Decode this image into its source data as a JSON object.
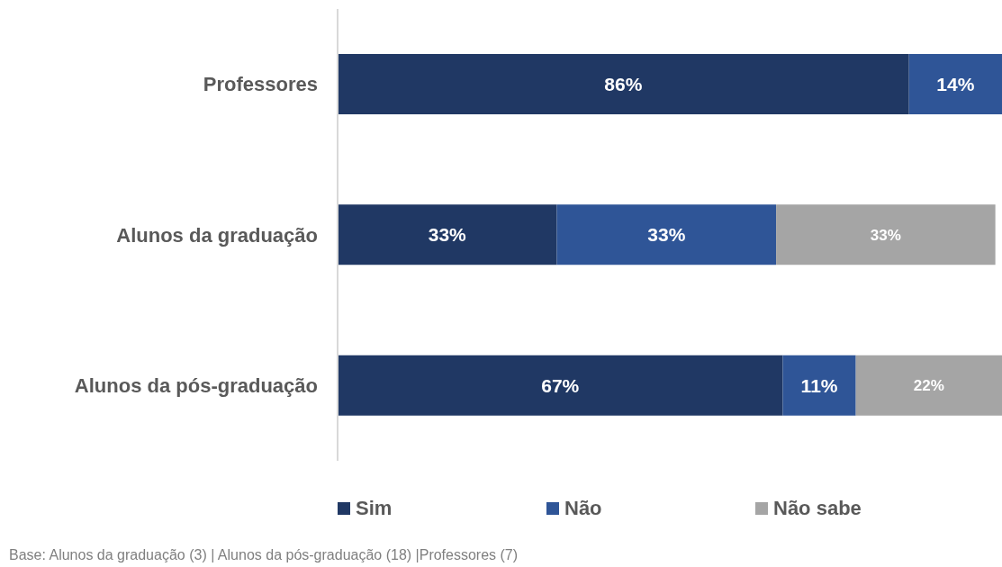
{
  "chart_data": {
    "type": "bar",
    "orientation": "horizontal",
    "stacked": true,
    "categories": [
      "Professores",
      "Alunos da graduação",
      "Alunos da pós-graduação"
    ],
    "series": [
      {
        "name": "Sim",
        "color": "#203864",
        "values": [
          86,
          33,
          67
        ],
        "value_labels": [
          "86%",
          "33%",
          "67%"
        ]
      },
      {
        "name": "Não",
        "color": "#2f5597",
        "values": [
          14,
          33,
          11
        ],
        "value_labels": [
          "14%",
          "33%",
          "11%"
        ]
      },
      {
        "name": "Não sabe",
        "color": "#a5a5a5",
        "values": [
          null,
          33,
          22
        ],
        "value_labels": [
          null,
          "33%",
          "22%"
        ]
      }
    ],
    "xlim": [
      0,
      100
    ],
    "tick_labels": "y",
    "legend": "bottom",
    "annotations": [
      "Base: Alunos da graduação (3) | Alunos da pós-graduação (18) |Professores (7)"
    ]
  }
}
